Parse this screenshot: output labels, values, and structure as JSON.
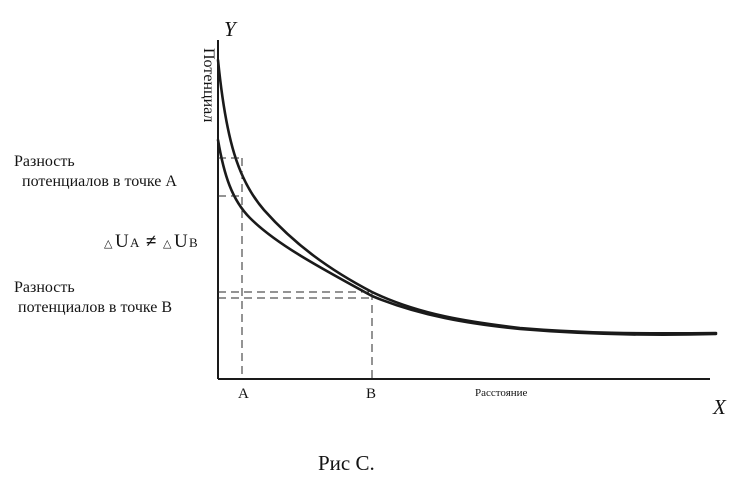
{
  "axes": {
    "y_letter": "Y",
    "x_letter": "X",
    "y_title": "Потенциал",
    "x_title": "Расстояние"
  },
  "points": {
    "a_label": "A",
    "b_label": "B"
  },
  "labels": {
    "diff_a_line1": "Разность",
    "diff_a_line2": "потенциалов в точке A",
    "diff_b_line1": "Разность",
    "diff_b_line2": "потенциалов в точке B",
    "inequality": {
      "delta_left": "△",
      "u_left": "U",
      "sub_left": "A",
      "neq": "≠",
      "delta_right": "△",
      "u_right": "U",
      "sub_right": "B"
    }
  },
  "caption": "Рис С.",
  "colors": {
    "ink": "#1a1a1a",
    "background": "#ffffff"
  }
}
